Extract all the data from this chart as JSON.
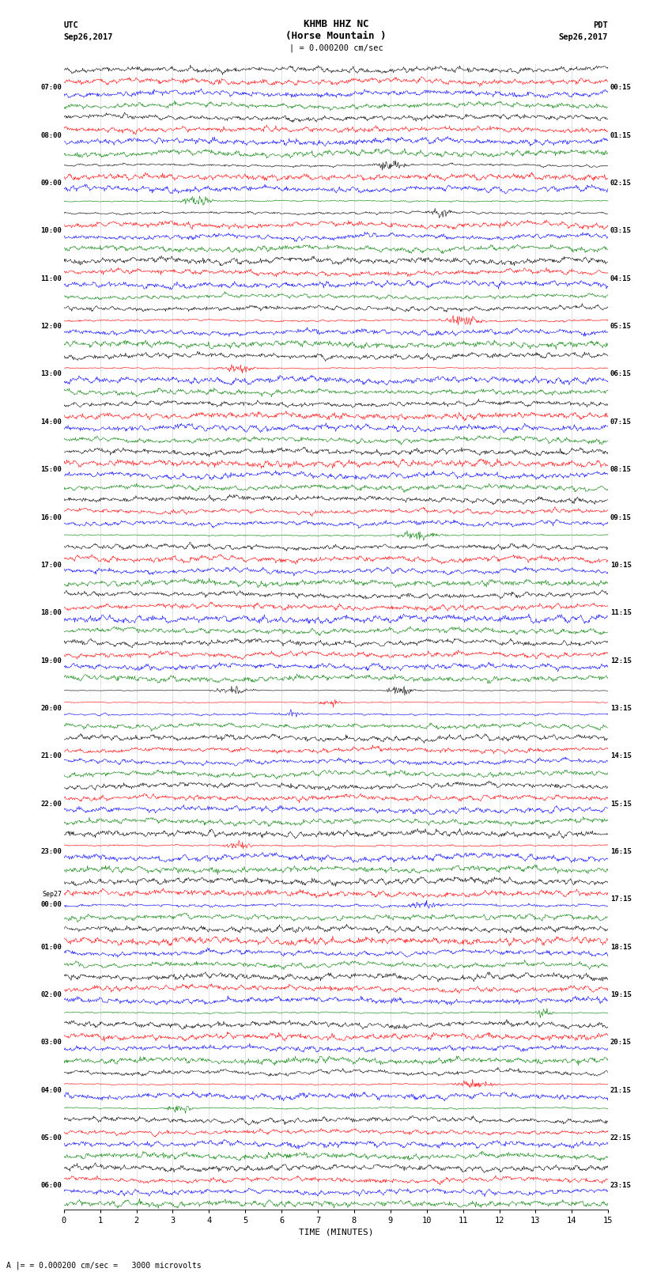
{
  "title_line1": "KHMB HHZ NC",
  "title_line2": "(Horse Mountain )",
  "title_scale": "| = 0.000200 cm/sec",
  "top_left_label": "UTC",
  "top_left_date": "Sep26,2017",
  "top_right_label": "PDT",
  "top_right_date": "Sep26,2017",
  "bottom_label": "TIME (MINUTES)",
  "bottom_note": "= 0.000200 cm/sec =   3000 microvolts",
  "xlabel_ticks": [
    0,
    1,
    2,
    3,
    4,
    5,
    6,
    7,
    8,
    9,
    10,
    11,
    12,
    13,
    14,
    15
  ],
  "left_times": [
    "07:00",
    "08:00",
    "09:00",
    "10:00",
    "11:00",
    "12:00",
    "13:00",
    "14:00",
    "15:00",
    "16:00",
    "17:00",
    "18:00",
    "19:00",
    "20:00",
    "21:00",
    "22:00",
    "23:00",
    "Sep27\n00:00",
    "01:00",
    "02:00",
    "03:00",
    "04:00",
    "05:00",
    "06:00"
  ],
  "right_times": [
    "00:15",
    "01:15",
    "02:15",
    "03:15",
    "04:15",
    "05:15",
    "06:15",
    "07:15",
    "08:15",
    "09:15",
    "10:15",
    "11:15",
    "12:15",
    "13:15",
    "14:15",
    "15:15",
    "16:15",
    "17:15",
    "18:15",
    "19:15",
    "20:15",
    "21:15",
    "22:15",
    "23:15"
  ],
  "n_rows": 24,
  "traces_per_row": 4,
  "trace_colors": [
    "black",
    "red",
    "blue",
    "green"
  ],
  "bg_color": "white",
  "fig_width": 8.5,
  "fig_height": 16.13,
  "burst_row_green": 7,
  "burst_row_black": 8,
  "earthquake_row": 13,
  "seed": 42,
  "n_points": 900,
  "gray_line_color": "#aaaaaa",
  "spine_color": "#333333"
}
